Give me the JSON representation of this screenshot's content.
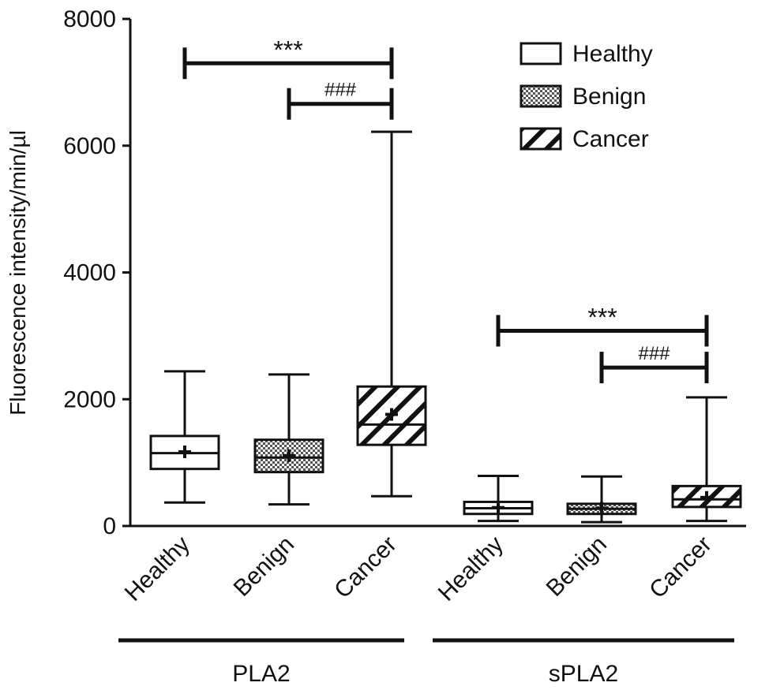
{
  "chart_data": {
    "type": "boxplot",
    "ylabel": "Fluorescence intensity/min/µl",
    "ylim": [
      0,
      8000
    ],
    "yticks": [
      0,
      2000,
      4000,
      6000,
      8000
    ],
    "ytick_labels": [
      "0",
      "2000",
      "4000",
      "6000",
      "8000"
    ],
    "groups": [
      {
        "label": "PLA2",
        "categories": [
          "Healthy",
          "Benign",
          "Cancer"
        ]
      },
      {
        "label": "sPLA2",
        "categories": [
          "Healthy",
          "Benign",
          "Cancer"
        ]
      }
    ],
    "series": [
      {
        "name": "Healthy",
        "pattern": "open"
      },
      {
        "name": "Benign",
        "pattern": "dotted"
      },
      {
        "name": "Cancer",
        "pattern": "hatched"
      }
    ],
    "boxes": [
      {
        "group": "PLA2",
        "category": "Healthy",
        "pattern": "open",
        "min": 370,
        "q1": 900,
        "median": 1150,
        "q3": 1420,
        "max": 2440,
        "mean": 1170
      },
      {
        "group": "PLA2",
        "category": "Benign",
        "pattern": "dotted",
        "min": 340,
        "q1": 850,
        "median": 1080,
        "q3": 1360,
        "max": 2390,
        "mean": 1110
      },
      {
        "group": "PLA2",
        "category": "Cancer",
        "pattern": "hatched",
        "min": 470,
        "q1": 1280,
        "median": 1600,
        "q3": 2200,
        "max": 6220,
        "mean": 1760
      },
      {
        "group": "sPLA2",
        "category": "Healthy",
        "pattern": "open",
        "min": 80,
        "q1": 190,
        "median": 280,
        "q3": 380,
        "max": 790,
        "mean": 290
      },
      {
        "group": "sPLA2",
        "category": "Benign",
        "pattern": "dotted",
        "min": 60,
        "q1": 190,
        "median": 270,
        "q3": 350,
        "max": 780,
        "mean": 280
      },
      {
        "group": "sPLA2",
        "category": "Cancer",
        "pattern": "hatched",
        "min": 80,
        "q1": 300,
        "median": 420,
        "q3": 630,
        "max": 2030,
        "mean": 450
      }
    ],
    "annotations": [
      {
        "text": "***",
        "from_box": 0,
        "to_box": 2,
        "y": 7300
      },
      {
        "text": "###",
        "from_box": 1,
        "to_box": 2,
        "y": 6660
      },
      {
        "text": "***",
        "from_box": 3,
        "to_box": 5,
        "y": 3080
      },
      {
        "text": "###",
        "from_box": 4,
        "to_box": 5,
        "y": 2500
      }
    ],
    "legend": {
      "position": "top-right",
      "entries": [
        "Healthy",
        "Benign",
        "Cancer"
      ]
    }
  }
}
